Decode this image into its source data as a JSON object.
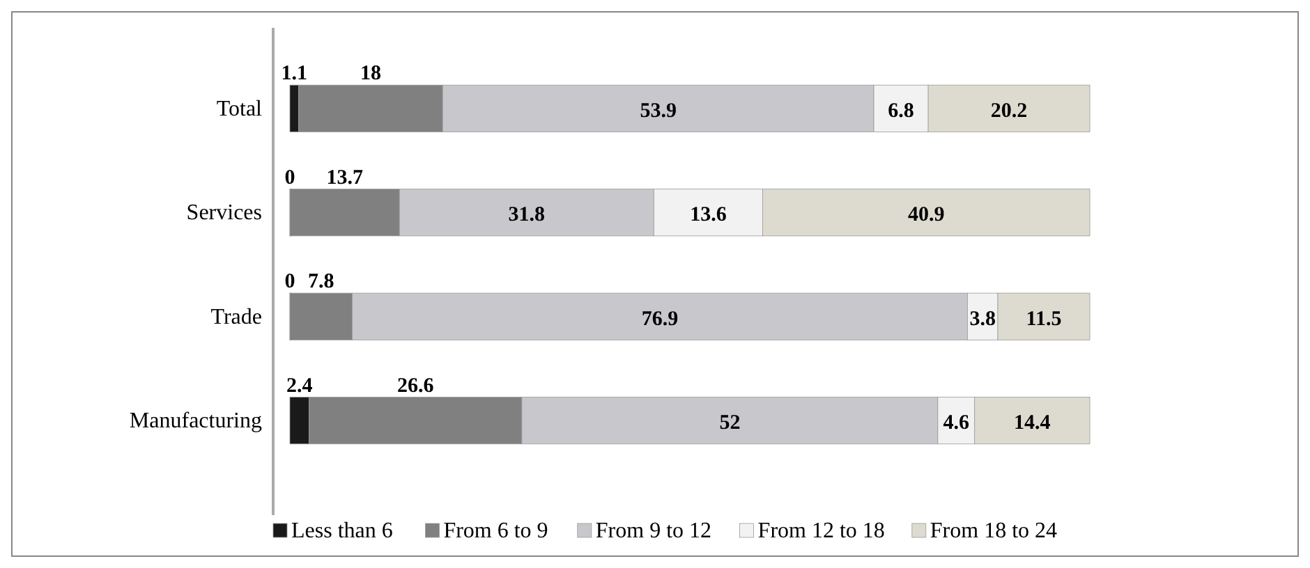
{
  "chart_data": {
    "type": "bar",
    "orientation": "horizontal",
    "stacked": true,
    "categories": [
      "Total",
      "Services",
      "Trade",
      "Manufacturing"
    ],
    "series": [
      {
        "name": "Less than 6",
        "color": "#1a1a1a",
        "values": [
          1.1,
          0,
          0,
          2.4
        ]
      },
      {
        "name": "From 6 to 9",
        "color": "#808080",
        "values": [
          18,
          13.7,
          7.8,
          26.6
        ]
      },
      {
        "name": "From 9 to 12",
        "color": "#c8c8cc",
        "values": [
          53.9,
          31.8,
          76.9,
          52
        ]
      },
      {
        "name": "From 12 to 18",
        "color": "#f2f2f2",
        "values": [
          6.8,
          13.6,
          3.8,
          4.6
        ]
      },
      {
        "name": "From 18 to 24",
        "color": "#dddbd0",
        "values": [
          20.2,
          40.9,
          11.5,
          14.4
        ]
      }
    ],
    "xlim": [
      0,
      100
    ],
    "tick_labels": "y",
    "data_labels": true,
    "legend": "bottom"
  }
}
